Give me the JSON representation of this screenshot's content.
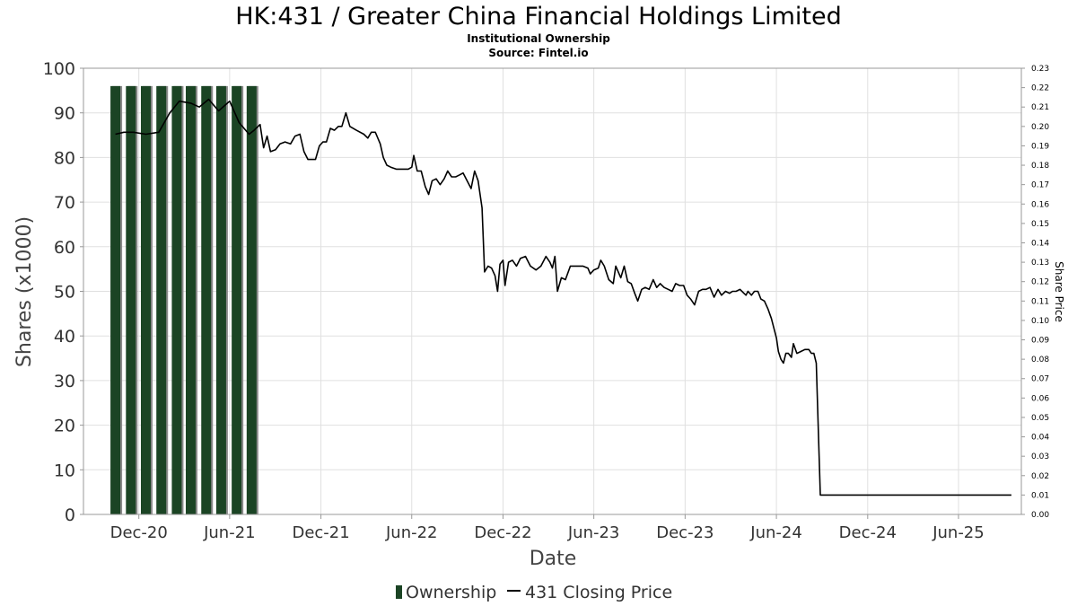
{
  "colors": {
    "ownership_bar": "#1b4424",
    "price_line": "#000000",
    "grid": "#e0e0e0",
    "axis": "#999999"
  },
  "chart_data": {
    "type": "bar",
    "title": "HK:431 / Greater China Financial Holdings Limited",
    "subtitle_lines": [
      "Institutional Ownership",
      "Source: Fintel.io"
    ],
    "xlabel": "Date",
    "ylabel": "Shares (x1000)",
    "y2label": "Share Price",
    "ylim": [
      0,
      100
    ],
    "y2lim": [
      0.0,
      0.23
    ],
    "xlim": [
      "2020-08-12",
      "2025-10-05"
    ],
    "grid": true,
    "legend_position": "bottom",
    "x_ticks": [
      {
        "date": "2020-12-01",
        "label": "Dec-20"
      },
      {
        "date": "2021-06-01",
        "label": "Jun-21"
      },
      {
        "date": "2021-12-01",
        "label": "Dec-21"
      },
      {
        "date": "2022-06-01",
        "label": "Jun-22"
      },
      {
        "date": "2022-12-01",
        "label": "Dec-22"
      },
      {
        "date": "2023-06-01",
        "label": "Jun-23"
      },
      {
        "date": "2023-12-01",
        "label": "Dec-23"
      },
      {
        "date": "2024-06-01",
        "label": "Jun-24"
      },
      {
        "date": "2024-12-01",
        "label": "Dec-24"
      },
      {
        "date": "2025-06-01",
        "label": "Jun-25"
      }
    ],
    "y_ticks": [
      "0",
      "10",
      "20",
      "30",
      "40",
      "50",
      "60",
      "70",
      "80",
      "90",
      "100"
    ],
    "y2_ticks": [
      "0.00",
      "0.01",
      "0.02",
      "0.03",
      "0.04",
      "0.05",
      "0.06",
      "0.07",
      "0.08",
      "0.09",
      "0.10",
      "0.11",
      "0.12",
      "0.13",
      "0.14",
      "0.15",
      "0.16",
      "0.17",
      "0.18",
      "0.19",
      "0.20",
      "0.21",
      "0.22",
      "0.23"
    ],
    "series": [
      {
        "name": "Ownership",
        "type": "bar",
        "axis": "left",
        "points": [
          {
            "x": "2020-10-15",
            "y": 96
          },
          {
            "x": "2020-11-15",
            "y": 96
          },
          {
            "x": "2020-12-15",
            "y": 96
          },
          {
            "x": "2021-01-15",
            "y": 96
          },
          {
            "x": "2021-02-15",
            "y": 96
          },
          {
            "x": "2021-03-15",
            "y": 96
          },
          {
            "x": "2021-04-15",
            "y": 96
          },
          {
            "x": "2021-05-15",
            "y": 96
          },
          {
            "x": "2021-06-15",
            "y": 96
          },
          {
            "x": "2021-07-15",
            "y": 96
          }
        ]
      },
      {
        "name": "431 Closing Price",
        "type": "line",
        "axis": "right",
        "points": [
          {
            "x": "2020-10-15",
            "y": 0.196
          },
          {
            "x": "2020-11-01",
            "y": 0.197
          },
          {
            "x": "2020-11-20",
            "y": 0.197
          },
          {
            "x": "2020-12-15",
            "y": 0.196
          },
          {
            "x": "2021-01-10",
            "y": 0.197
          },
          {
            "x": "2021-02-01",
            "y": 0.207
          },
          {
            "x": "2021-02-20",
            "y": 0.213
          },
          {
            "x": "2021-03-15",
            "y": 0.212
          },
          {
            "x": "2021-04-01",
            "y": 0.21
          },
          {
            "x": "2021-04-20",
            "y": 0.214
          },
          {
            "x": "2021-05-10",
            "y": 0.208
          },
          {
            "x": "2021-06-01",
            "y": 0.213
          },
          {
            "x": "2021-06-20",
            "y": 0.202
          },
          {
            "x": "2021-07-10",
            "y": 0.196
          },
          {
            "x": "2021-07-20",
            "y": 0.198
          },
          {
            "x": "2021-08-01",
            "y": 0.201
          },
          {
            "x": "2021-08-08",
            "y": 0.189
          },
          {
            "x": "2021-08-15",
            "y": 0.195
          },
          {
            "x": "2021-08-22",
            "y": 0.187
          },
          {
            "x": "2021-09-01",
            "y": 0.188
          },
          {
            "x": "2021-09-10",
            "y": 0.191
          },
          {
            "x": "2021-09-20",
            "y": 0.192
          },
          {
            "x": "2021-10-01",
            "y": 0.191
          },
          {
            "x": "2021-10-10",
            "y": 0.195
          },
          {
            "x": "2021-10-20",
            "y": 0.196
          },
          {
            "x": "2021-10-28",
            "y": 0.187
          },
          {
            "x": "2021-11-05",
            "y": 0.183
          },
          {
            "x": "2021-11-20",
            "y": 0.183
          },
          {
            "x": "2021-11-28",
            "y": 0.19
          },
          {
            "x": "2021-12-05",
            "y": 0.192
          },
          {
            "x": "2021-12-12",
            "y": 0.192
          },
          {
            "x": "2021-12-20",
            "y": 0.199
          },
          {
            "x": "2021-12-28",
            "y": 0.198
          },
          {
            "x": "2022-01-05",
            "y": 0.2
          },
          {
            "x": "2022-01-12",
            "y": 0.2
          },
          {
            "x": "2022-01-20",
            "y": 0.207
          },
          {
            "x": "2022-01-28",
            "y": 0.2
          },
          {
            "x": "2022-02-10",
            "y": 0.198
          },
          {
            "x": "2022-02-25",
            "y": 0.196
          },
          {
            "x": "2022-03-05",
            "y": 0.194
          },
          {
            "x": "2022-03-12",
            "y": 0.197
          },
          {
            "x": "2022-03-20",
            "y": 0.197
          },
          {
            "x": "2022-03-30",
            "y": 0.191
          },
          {
            "x": "2022-04-05",
            "y": 0.184
          },
          {
            "x": "2022-04-12",
            "y": 0.18
          },
          {
            "x": "2022-04-20",
            "y": 0.179
          },
          {
            "x": "2022-05-01",
            "y": 0.178
          },
          {
            "x": "2022-05-15",
            "y": 0.178
          },
          {
            "x": "2022-05-25",
            "y": 0.178
          },
          {
            "x": "2022-06-01",
            "y": 0.179
          },
          {
            "x": "2022-06-05",
            "y": 0.185
          },
          {
            "x": "2022-06-12",
            "y": 0.177
          },
          {
            "x": "2022-06-20",
            "y": 0.177
          },
          {
            "x": "2022-06-28",
            "y": 0.169
          },
          {
            "x": "2022-07-05",
            "y": 0.165
          },
          {
            "x": "2022-07-12",
            "y": 0.172
          },
          {
            "x": "2022-07-20",
            "y": 0.173
          },
          {
            "x": "2022-07-28",
            "y": 0.17
          },
          {
            "x": "2022-08-05",
            "y": 0.173
          },
          {
            "x": "2022-08-12",
            "y": 0.177
          },
          {
            "x": "2022-08-20",
            "y": 0.174
          },
          {
            "x": "2022-08-28",
            "y": 0.174
          },
          {
            "x": "2022-09-05",
            "y": 0.175
          },
          {
            "x": "2022-09-12",
            "y": 0.176
          },
          {
            "x": "2022-09-20",
            "y": 0.172
          },
          {
            "x": "2022-09-28",
            "y": 0.168
          },
          {
            "x": "2022-10-05",
            "y": 0.177
          },
          {
            "x": "2022-10-12",
            "y": 0.172
          },
          {
            "x": "2022-10-20",
            "y": 0.158
          },
          {
            "x": "2022-10-25",
            "y": 0.125
          },
          {
            "x": "2022-11-01",
            "y": 0.128
          },
          {
            "x": "2022-11-08",
            "y": 0.127
          },
          {
            "x": "2022-11-15",
            "y": 0.123
          },
          {
            "x": "2022-11-20",
            "y": 0.115
          },
          {
            "x": "2022-11-25",
            "y": 0.129
          },
          {
            "x": "2022-12-01",
            "y": 0.131
          },
          {
            "x": "2022-12-05",
            "y": 0.118
          },
          {
            "x": "2022-12-12",
            "y": 0.13
          },
          {
            "x": "2022-12-20",
            "y": 0.131
          },
          {
            "x": "2022-12-28",
            "y": 0.128
          },
          {
            "x": "2023-01-05",
            "y": 0.132
          },
          {
            "x": "2023-01-15",
            "y": 0.133
          },
          {
            "x": "2023-01-25",
            "y": 0.128
          },
          {
            "x": "2023-02-05",
            "y": 0.126
          },
          {
            "x": "2023-02-15",
            "y": 0.128
          },
          {
            "x": "2023-02-25",
            "y": 0.133
          },
          {
            "x": "2023-03-05",
            "y": 0.13
          },
          {
            "x": "2023-03-10",
            "y": 0.127
          },
          {
            "x": "2023-03-15",
            "y": 0.133
          },
          {
            "x": "2023-03-20",
            "y": 0.115
          },
          {
            "x": "2023-03-28",
            "y": 0.122
          },
          {
            "x": "2023-04-05",
            "y": 0.121
          },
          {
            "x": "2023-04-15",
            "y": 0.128
          },
          {
            "x": "2023-04-25",
            "y": 0.128
          },
          {
            "x": "2023-05-10",
            "y": 0.128
          },
          {
            "x": "2023-05-20",
            "y": 0.127
          },
          {
            "x": "2023-05-25",
            "y": 0.124
          },
          {
            "x": "2023-06-01",
            "y": 0.126
          },
          {
            "x": "2023-06-10",
            "y": 0.127
          },
          {
            "x": "2023-06-15",
            "y": 0.131
          },
          {
            "x": "2023-06-22",
            "y": 0.128
          },
          {
            "x": "2023-07-01",
            "y": 0.121
          },
          {
            "x": "2023-07-10",
            "y": 0.119
          },
          {
            "x": "2023-07-15",
            "y": 0.128
          },
          {
            "x": "2023-07-25",
            "y": 0.122
          },
          {
            "x": "2023-08-01",
            "y": 0.128
          },
          {
            "x": "2023-08-08",
            "y": 0.12
          },
          {
            "x": "2023-08-15",
            "y": 0.119
          },
          {
            "x": "2023-08-22",
            "y": 0.114
          },
          {
            "x": "2023-08-28",
            "y": 0.11
          },
          {
            "x": "2023-09-05",
            "y": 0.116
          },
          {
            "x": "2023-09-12",
            "y": 0.117
          },
          {
            "x": "2023-09-20",
            "y": 0.116
          },
          {
            "x": "2023-09-28",
            "y": 0.121
          },
          {
            "x": "2023-10-05",
            "y": 0.117
          },
          {
            "x": "2023-10-12",
            "y": 0.119
          },
          {
            "x": "2023-10-20",
            "y": 0.117
          },
          {
            "x": "2023-10-28",
            "y": 0.116
          },
          {
            "x": "2023-11-05",
            "y": 0.115
          },
          {
            "x": "2023-11-12",
            "y": 0.119
          },
          {
            "x": "2023-11-20",
            "y": 0.118
          },
          {
            "x": "2023-11-28",
            "y": 0.118
          },
          {
            "x": "2023-12-05",
            "y": 0.113
          },
          {
            "x": "2023-12-12",
            "y": 0.111
          },
          {
            "x": "2023-12-20",
            "y": 0.108
          },
          {
            "x": "2023-12-28",
            "y": 0.115
          },
          {
            "x": "2024-01-05",
            "y": 0.116
          },
          {
            "x": "2024-01-12",
            "y": 0.116
          },
          {
            "x": "2024-01-20",
            "y": 0.117
          },
          {
            "x": "2024-01-28",
            "y": 0.112
          },
          {
            "x": "2024-02-05",
            "y": 0.116
          },
          {
            "x": "2024-02-12",
            "y": 0.113
          },
          {
            "x": "2024-02-20",
            "y": 0.115
          },
          {
            "x": "2024-02-28",
            "y": 0.114
          },
          {
            "x": "2024-03-05",
            "y": 0.115
          },
          {
            "x": "2024-03-12",
            "y": 0.115
          },
          {
            "x": "2024-03-20",
            "y": 0.116
          },
          {
            "x": "2024-03-28",
            "y": 0.114
          },
          {
            "x": "2024-04-01",
            "y": 0.113
          },
          {
            "x": "2024-04-05",
            "y": 0.115
          },
          {
            "x": "2024-04-12",
            "y": 0.113
          },
          {
            "x": "2024-04-18",
            "y": 0.115
          },
          {
            "x": "2024-04-25",
            "y": 0.115
          },
          {
            "x": "2024-05-01",
            "y": 0.111
          },
          {
            "x": "2024-05-08",
            "y": 0.11
          },
          {
            "x": "2024-05-15",
            "y": 0.106
          },
          {
            "x": "2024-05-22",
            "y": 0.101
          },
          {
            "x": "2024-06-01",
            "y": 0.091
          },
          {
            "x": "2024-06-05",
            "y": 0.084
          },
          {
            "x": "2024-06-10",
            "y": 0.08
          },
          {
            "x": "2024-06-15",
            "y": 0.078
          },
          {
            "x": "2024-06-20",
            "y": 0.083
          },
          {
            "x": "2024-06-25",
            "y": 0.083
          },
          {
            "x": "2024-07-01",
            "y": 0.081
          },
          {
            "x": "2024-07-05",
            "y": 0.088
          },
          {
            "x": "2024-07-12",
            "y": 0.083
          },
          {
            "x": "2024-07-20",
            "y": 0.084
          },
          {
            "x": "2024-07-28",
            "y": 0.085
          },
          {
            "x": "2024-08-05",
            "y": 0.085
          },
          {
            "x": "2024-08-10",
            "y": 0.083
          },
          {
            "x": "2024-08-15",
            "y": 0.083
          },
          {
            "x": "2024-08-20",
            "y": 0.078
          },
          {
            "x": "2024-08-28",
            "y": 0.01
          },
          {
            "x": "2025-09-15",
            "y": 0.01
          }
        ]
      }
    ]
  }
}
